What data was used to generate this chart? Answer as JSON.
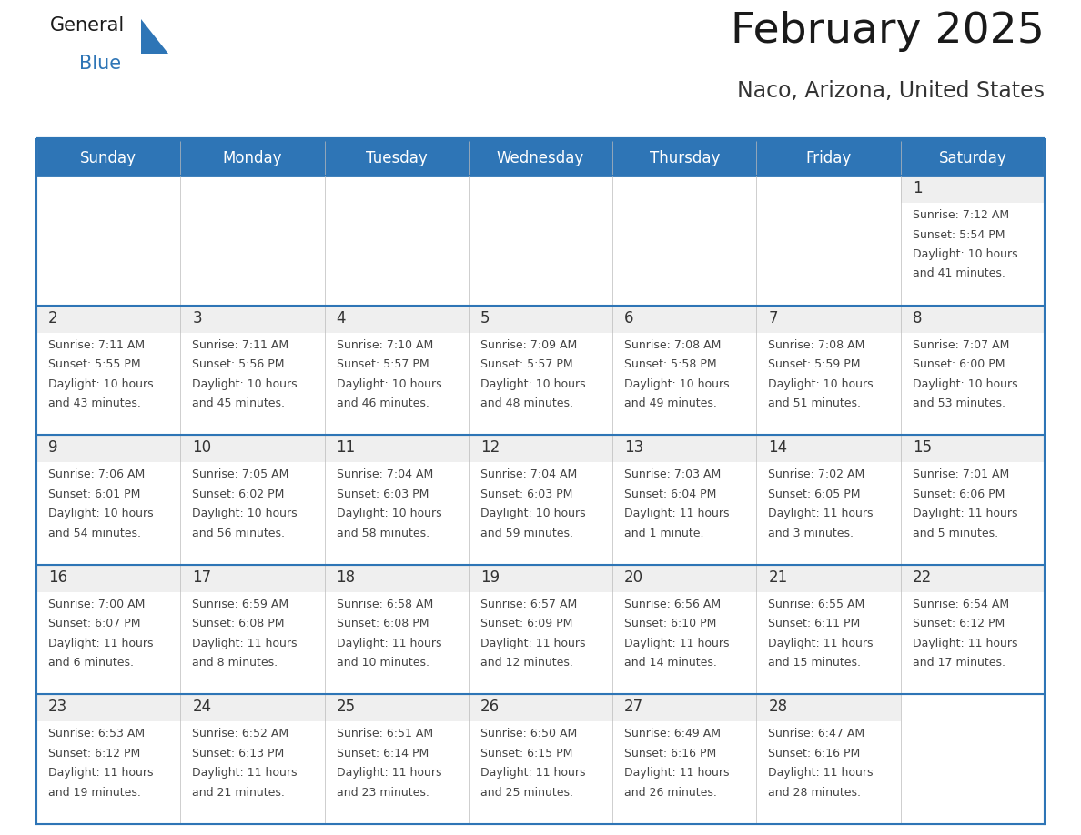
{
  "title": "February 2025",
  "subtitle": "Naco, Arizona, United States",
  "days_of_week": [
    "Sunday",
    "Monday",
    "Tuesday",
    "Wednesday",
    "Thursday",
    "Friday",
    "Saturday"
  ],
  "header_bg": "#2E75B6",
  "header_text": "#FFFFFF",
  "cell_top_bg": "#EFEFEF",
  "cell_body_bg": "#FFFFFF",
  "border_color": "#2E75B6",
  "day_num_color": "#333333",
  "text_color": "#444444",
  "title_color": "#1a1a1a",
  "subtitle_color": "#333333",
  "logo_general_color": "#1a1a1a",
  "logo_blue_color": "#2E75B6",
  "calendar_data": [
    [
      null,
      null,
      null,
      null,
      null,
      null,
      {
        "day": "1",
        "sunrise": "7:12 AM",
        "sunset": "5:54 PM",
        "daylight_line1": "Daylight: 10 hours",
        "daylight_line2": "and 41 minutes."
      }
    ],
    [
      {
        "day": "2",
        "sunrise": "7:11 AM",
        "sunset": "5:55 PM",
        "daylight_line1": "Daylight: 10 hours",
        "daylight_line2": "and 43 minutes."
      },
      {
        "day": "3",
        "sunrise": "7:11 AM",
        "sunset": "5:56 PM",
        "daylight_line1": "Daylight: 10 hours",
        "daylight_line2": "and 45 minutes."
      },
      {
        "day": "4",
        "sunrise": "7:10 AM",
        "sunset": "5:57 PM",
        "daylight_line1": "Daylight: 10 hours",
        "daylight_line2": "and 46 minutes."
      },
      {
        "day": "5",
        "sunrise": "7:09 AM",
        "sunset": "5:57 PM",
        "daylight_line1": "Daylight: 10 hours",
        "daylight_line2": "and 48 minutes."
      },
      {
        "day": "6",
        "sunrise": "7:08 AM",
        "sunset": "5:58 PM",
        "daylight_line1": "Daylight: 10 hours",
        "daylight_line2": "and 49 minutes."
      },
      {
        "day": "7",
        "sunrise": "7:08 AM",
        "sunset": "5:59 PM",
        "daylight_line1": "Daylight: 10 hours",
        "daylight_line2": "and 51 minutes."
      },
      {
        "day": "8",
        "sunrise": "7:07 AM",
        "sunset": "6:00 PM",
        "daylight_line1": "Daylight: 10 hours",
        "daylight_line2": "and 53 minutes."
      }
    ],
    [
      {
        "day": "9",
        "sunrise": "7:06 AM",
        "sunset": "6:01 PM",
        "daylight_line1": "Daylight: 10 hours",
        "daylight_line2": "and 54 minutes."
      },
      {
        "day": "10",
        "sunrise": "7:05 AM",
        "sunset": "6:02 PM",
        "daylight_line1": "Daylight: 10 hours",
        "daylight_line2": "and 56 minutes."
      },
      {
        "day": "11",
        "sunrise": "7:04 AM",
        "sunset": "6:03 PM",
        "daylight_line1": "Daylight: 10 hours",
        "daylight_line2": "and 58 minutes."
      },
      {
        "day": "12",
        "sunrise": "7:04 AM",
        "sunset": "6:03 PM",
        "daylight_line1": "Daylight: 10 hours",
        "daylight_line2": "and 59 minutes."
      },
      {
        "day": "13",
        "sunrise": "7:03 AM",
        "sunset": "6:04 PM",
        "daylight_line1": "Daylight: 11 hours",
        "daylight_line2": "and 1 minute."
      },
      {
        "day": "14",
        "sunrise": "7:02 AM",
        "sunset": "6:05 PM",
        "daylight_line1": "Daylight: 11 hours",
        "daylight_line2": "and 3 minutes."
      },
      {
        "day": "15",
        "sunrise": "7:01 AM",
        "sunset": "6:06 PM",
        "daylight_line1": "Daylight: 11 hours",
        "daylight_line2": "and 5 minutes."
      }
    ],
    [
      {
        "day": "16",
        "sunrise": "7:00 AM",
        "sunset": "6:07 PM",
        "daylight_line1": "Daylight: 11 hours",
        "daylight_line2": "and 6 minutes."
      },
      {
        "day": "17",
        "sunrise": "6:59 AM",
        "sunset": "6:08 PM",
        "daylight_line1": "Daylight: 11 hours",
        "daylight_line2": "and 8 minutes."
      },
      {
        "day": "18",
        "sunrise": "6:58 AM",
        "sunset": "6:08 PM",
        "daylight_line1": "Daylight: 11 hours",
        "daylight_line2": "and 10 minutes."
      },
      {
        "day": "19",
        "sunrise": "6:57 AM",
        "sunset": "6:09 PM",
        "daylight_line1": "Daylight: 11 hours",
        "daylight_line2": "and 12 minutes."
      },
      {
        "day": "20",
        "sunrise": "6:56 AM",
        "sunset": "6:10 PM",
        "daylight_line1": "Daylight: 11 hours",
        "daylight_line2": "and 14 minutes."
      },
      {
        "day": "21",
        "sunrise": "6:55 AM",
        "sunset": "6:11 PM",
        "daylight_line1": "Daylight: 11 hours",
        "daylight_line2": "and 15 minutes."
      },
      {
        "day": "22",
        "sunrise": "6:54 AM",
        "sunset": "6:12 PM",
        "daylight_line1": "Daylight: 11 hours",
        "daylight_line2": "and 17 minutes."
      }
    ],
    [
      {
        "day": "23",
        "sunrise": "6:53 AM",
        "sunset": "6:12 PM",
        "daylight_line1": "Daylight: 11 hours",
        "daylight_line2": "and 19 minutes."
      },
      {
        "day": "24",
        "sunrise": "6:52 AM",
        "sunset": "6:13 PM",
        "daylight_line1": "Daylight: 11 hours",
        "daylight_line2": "and 21 minutes."
      },
      {
        "day": "25",
        "sunrise": "6:51 AM",
        "sunset": "6:14 PM",
        "daylight_line1": "Daylight: 11 hours",
        "daylight_line2": "and 23 minutes."
      },
      {
        "day": "26",
        "sunrise": "6:50 AM",
        "sunset": "6:15 PM",
        "daylight_line1": "Daylight: 11 hours",
        "daylight_line2": "and 25 minutes."
      },
      {
        "day": "27",
        "sunrise": "6:49 AM",
        "sunset": "6:16 PM",
        "daylight_line1": "Daylight: 11 hours",
        "daylight_line2": "and 26 minutes."
      },
      {
        "day": "28",
        "sunrise": "6:47 AM",
        "sunset": "6:16 PM",
        "daylight_line1": "Daylight: 11 hours",
        "daylight_line2": "and 28 minutes."
      },
      null
    ]
  ]
}
